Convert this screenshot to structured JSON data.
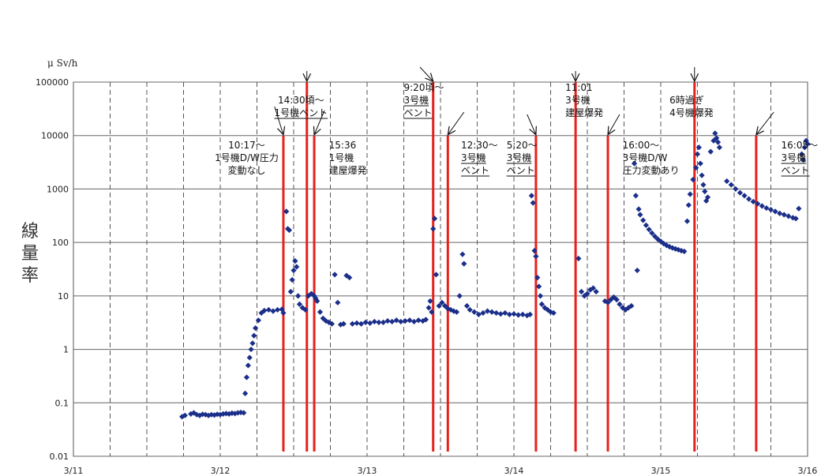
{
  "chart_data": {
    "type": "scatter",
    "unit_label": "μ Sv/h",
    "ylabel": "線量率",
    "y_scale": "log",
    "ylim": [
      0.01,
      100000
    ],
    "xlim": [
      0,
      5
    ],
    "y_ticks": [
      {
        "v": 0.01,
        "label": "0.01"
      },
      {
        "v": 0.1,
        "label": "0.1"
      },
      {
        "v": 1,
        "label": "1"
      },
      {
        "v": 10,
        "label": "10"
      },
      {
        "v": 100,
        "label": "100"
      },
      {
        "v": 1000,
        "label": "1000"
      },
      {
        "v": 10000,
        "label": "10000"
      },
      {
        "v": 100000,
        "label": "100000"
      }
    ],
    "x_ticks": [
      {
        "v": 0,
        "label": "3/11"
      },
      {
        "v": 1,
        "label": "3/12"
      },
      {
        "v": 2,
        "label": "3/13"
      },
      {
        "v": 3,
        "label": "3/14"
      },
      {
        "v": 4,
        "label": "3/15"
      },
      {
        "v": 5,
        "label": "3/16"
      }
    ],
    "grid": {
      "vertical_dashed_every_days": 0.25
    },
    "marker_color": "#1b2f8a",
    "event_line_color": "#e8201c",
    "series": [
      {
        "points": [
          [
            0.74,
            0.055
          ],
          [
            0.76,
            0.058
          ],
          [
            0.8,
            0.062
          ],
          [
            0.82,
            0.065
          ],
          [
            0.84,
            0.06
          ],
          [
            0.86,
            0.058
          ],
          [
            0.88,
            0.061
          ],
          [
            0.9,
            0.06
          ],
          [
            0.92,
            0.058
          ],
          [
            0.94,
            0.06
          ],
          [
            0.96,
            0.059
          ],
          [
            0.98,
            0.061
          ],
          [
            1.0,
            0.06
          ],
          [
            1.02,
            0.062
          ],
          [
            1.04,
            0.063
          ],
          [
            1.06,
            0.062
          ],
          [
            1.08,
            0.064
          ],
          [
            1.1,
            0.063
          ],
          [
            1.12,
            0.065
          ],
          [
            1.14,
            0.066
          ],
          [
            1.16,
            0.065
          ],
          [
            1.17,
            0.15
          ],
          [
            1.18,
            0.3
          ],
          [
            1.19,
            0.5
          ],
          [
            1.2,
            0.7
          ],
          [
            1.21,
            1.0
          ],
          [
            1.22,
            1.3
          ],
          [
            1.23,
            1.8
          ],
          [
            1.24,
            2.5
          ],
          [
            1.26,
            3.5
          ],
          [
            1.28,
            4.8
          ],
          [
            1.3,
            5.3
          ],
          [
            1.33,
            5.5
          ],
          [
            1.36,
            5.2
          ],
          [
            1.39,
            5.5
          ],
          [
            1.42,
            5.6
          ],
          [
            1.43,
            4.8
          ],
          [
            1.45,
            380
          ],
          [
            1.46,
            180
          ],
          [
            1.47,
            170
          ],
          [
            1.48,
            12
          ],
          [
            1.49,
            20
          ],
          [
            1.5,
            30
          ],
          [
            1.51,
            45
          ],
          [
            1.52,
            35
          ],
          [
            1.53,
            10
          ],
          [
            1.54,
            7
          ],
          [
            1.56,
            6
          ],
          [
            1.58,
            5.5
          ],
          [
            1.6,
            10
          ],
          [
            1.62,
            11
          ],
          [
            1.64,
            10
          ],
          [
            1.65,
            9
          ],
          [
            1.66,
            8
          ],
          [
            1.68,
            5
          ],
          [
            1.7,
            3.8
          ],
          [
            1.72,
            3.4
          ],
          [
            1.74,
            3.2
          ],
          [
            1.76,
            3.0
          ],
          [
            1.78,
            25
          ],
          [
            1.8,
            7.5
          ],
          [
            1.82,
            2.9
          ],
          [
            1.84,
            3.0
          ],
          [
            1.86,
            24
          ],
          [
            1.88,
            22
          ],
          [
            1.9,
            3.0
          ],
          [
            1.93,
            3.1
          ],
          [
            1.96,
            3.0
          ],
          [
            1.99,
            3.2
          ],
          [
            2.02,
            3.1
          ],
          [
            2.05,
            3.3
          ],
          [
            2.08,
            3.2
          ],
          [
            2.11,
            3.2
          ],
          [
            2.14,
            3.4
          ],
          [
            2.17,
            3.3
          ],
          [
            2.2,
            3.5
          ],
          [
            2.23,
            3.3
          ],
          [
            2.26,
            3.4
          ],
          [
            2.29,
            3.5
          ],
          [
            2.32,
            3.3
          ],
          [
            2.35,
            3.5
          ],
          [
            2.38,
            3.4
          ],
          [
            2.4,
            3.6
          ],
          [
            2.42,
            6
          ],
          [
            2.43,
            8
          ],
          [
            2.44,
            5
          ],
          [
            2.45,
            180
          ],
          [
            2.46,
            280
          ],
          [
            2.47,
            25
          ],
          [
            2.49,
            6.5
          ],
          [
            2.51,
            7.5
          ],
          [
            2.53,
            6.5
          ],
          [
            2.55,
            5.8
          ],
          [
            2.57,
            5.5
          ],
          [
            2.59,
            5.2
          ],
          [
            2.61,
            5.0
          ],
          [
            2.63,
            10
          ],
          [
            2.65,
            60
          ],
          [
            2.66,
            40
          ],
          [
            2.68,
            6.5
          ],
          [
            2.7,
            5.5
          ],
          [
            2.73,
            5.0
          ],
          [
            2.76,
            4.5
          ],
          [
            2.79,
            4.8
          ],
          [
            2.82,
            5.2
          ],
          [
            2.85,
            5.0
          ],
          [
            2.88,
            4.8
          ],
          [
            2.91,
            4.6
          ],
          [
            2.94,
            4.8
          ],
          [
            2.97,
            4.5
          ],
          [
            3.0,
            4.6
          ],
          [
            3.03,
            4.4
          ],
          [
            3.06,
            4.5
          ],
          [
            3.09,
            4.3
          ],
          [
            3.11,
            4.5
          ],
          [
            3.12,
            750
          ],
          [
            3.13,
            550
          ],
          [
            3.14,
            70
          ],
          [
            3.15,
            55
          ],
          [
            3.16,
            22
          ],
          [
            3.17,
            15
          ],
          [
            3.18,
            10
          ],
          [
            3.19,
            7
          ],
          [
            3.21,
            6
          ],
          [
            3.23,
            5.5
          ],
          [
            3.25,
            5.0
          ],
          [
            3.27,
            4.8
          ],
          [
            3.44,
            50
          ],
          [
            3.46,
            12
          ],
          [
            3.48,
            10
          ],
          [
            3.5,
            11
          ],
          [
            3.52,
            13
          ],
          [
            3.54,
            14
          ],
          [
            3.56,
            12
          ],
          [
            3.62,
            8
          ],
          [
            3.64,
            7.5
          ],
          [
            3.66,
            8.5
          ],
          [
            3.68,
            9.5
          ],
          [
            3.7,
            8.5
          ],
          [
            3.72,
            7
          ],
          [
            3.74,
            6
          ],
          [
            3.76,
            5.5
          ],
          [
            3.78,
            6
          ],
          [
            3.8,
            6.5
          ],
          [
            3.82,
            3000
          ],
          [
            3.83,
            750
          ],
          [
            3.84,
            30
          ],
          [
            3.85,
            420
          ],
          [
            3.86,
            330
          ],
          [
            3.88,
            260
          ],
          [
            3.9,
            210
          ],
          [
            3.92,
            175
          ],
          [
            3.94,
            150
          ],
          [
            3.96,
            130
          ],
          [
            3.98,
            115
          ],
          [
            4.0,
            105
          ],
          [
            4.02,
            95
          ],
          [
            4.04,
            88
          ],
          [
            4.06,
            83
          ],
          [
            4.08,
            79
          ],
          [
            4.1,
            76
          ],
          [
            4.12,
            73
          ],
          [
            4.14,
            70
          ],
          [
            4.16,
            68
          ],
          [
            4.18,
            250
          ],
          [
            4.19,
            500
          ],
          [
            4.2,
            800
          ],
          [
            4.22,
            1500
          ],
          [
            4.24,
            2500
          ],
          [
            4.25,
            4500
          ],
          [
            4.26,
            6000
          ],
          [
            4.27,
            3000
          ],
          [
            4.28,
            1800
          ],
          [
            4.29,
            1200
          ],
          [
            4.3,
            900
          ],
          [
            4.31,
            600
          ],
          [
            4.32,
            700
          ],
          [
            4.34,
            5000
          ],
          [
            4.36,
            8000
          ],
          [
            4.37,
            11000
          ],
          [
            4.38,
            9000
          ],
          [
            4.39,
            7500
          ],
          [
            4.4,
            6000
          ],
          [
            4.45,
            1400
          ],
          [
            4.48,
            1200
          ],
          [
            4.51,
            1000
          ],
          [
            4.54,
            850
          ],
          [
            4.57,
            750
          ],
          [
            4.6,
            650
          ],
          [
            4.63,
            580
          ],
          [
            4.66,
            530
          ],
          [
            4.69,
            480
          ],
          [
            4.72,
            440
          ],
          [
            4.75,
            410
          ],
          [
            4.78,
            380
          ],
          [
            4.81,
            350
          ],
          [
            4.84,
            330
          ],
          [
            4.87,
            310
          ],
          [
            4.9,
            290
          ],
          [
            4.92,
            280
          ],
          [
            4.94,
            430
          ],
          [
            4.96,
            4500
          ],
          [
            4.97,
            3500
          ],
          [
            4.98,
            6000
          ],
          [
            4.99,
            8000
          ],
          [
            5.0,
            7000
          ]
        ]
      }
    ],
    "events": [
      {
        "x": 1.43,
        "top": 10000,
        "ann": {
          "lines": [
            "10:17～",
            "1号機D/W圧力",
            "変動なし"
          ],
          "ul": [],
          "left": true,
          "tx": 1.18,
          "ty": 220,
          "ax0": 1.37,
          "ay0": 135
        }
      },
      {
        "x": 1.59,
        "top": 100000,
        "ann": {
          "lines": [
            "14:30頃～",
            "1号機ベント"
          ],
          "ul": [
            1
          ],
          "left": true,
          "tx": 1.55,
          "ty": 147,
          "ax0": 1.59,
          "ay0": 90
        }
      },
      {
        "x": 1.64,
        "top": 10000,
        "ann": {
          "lines": [
            "15:36",
            "1号機",
            "建屋爆発"
          ],
          "ul": [],
          "left": false,
          "tx": 1.74,
          "ty": 220,
          "ax0": 1.71,
          "ay0": 140
        }
      },
      {
        "x": 2.45,
        "top": 100000,
        "ann": {
          "lines": [
            "9:20頃～",
            "3号機",
            "ベント"
          ],
          "ul": [
            1,
            2
          ],
          "left": false,
          "tx": 2.25,
          "ty": 147,
          "ax0": 2.36,
          "ay0": 85
        }
      },
      {
        "x": 2.55,
        "top": 10000,
        "ann": {
          "lines": [
            "12:30～",
            "3号機",
            "ベント"
          ],
          "ul": [
            1,
            2
          ],
          "left": false,
          "tx": 2.64,
          "ty": 220,
          "ax0": 2.66,
          "ay0": 142
        }
      },
      {
        "x": 3.15,
        "top": 10000,
        "ann": {
          "lines": [
            "5:20～",
            "3号機",
            "ベント"
          ],
          "ul": [
            1,
            2
          ],
          "left": false,
          "tx": 2.95,
          "ty": 220,
          "ax0": 3.09,
          "ay0": 145
        }
      },
      {
        "x": 3.42,
        "top": 100000,
        "ann": {
          "lines": [
            "11:01",
            "3号機",
            "建屋爆発"
          ],
          "ul": [],
          "left": false,
          "tx": 3.35,
          "ty": 147,
          "ax0": 3.42,
          "ay0": 90
        }
      },
      {
        "x": 3.64,
        "top": 10000,
        "ann": {
          "lines": [
            "16:00～",
            "3号機D/W",
            "圧力変動あり"
          ],
          "ul": [],
          "left": false,
          "tx": 3.74,
          "ty": 220,
          "ax0": 3.72,
          "ay0": 145
        }
      },
      {
        "x": 4.23,
        "top": 100000,
        "ann": {
          "lines": [
            "6時過ぎ",
            "4号機爆発"
          ],
          "ul": [],
          "left": false,
          "tx": 4.06,
          "ty": 147,
          "ax0": 4.23,
          "ay0": 85
        }
      },
      {
        "x": 4.65,
        "top": 10000,
        "ann": {
          "lines": [
            "16:05～",
            "3号機",
            "ベント"
          ],
          "ul": [
            1,
            2
          ],
          "left": false,
          "tx": 4.82,
          "ty": 220,
          "ax0": 4.77,
          "ay0": 142
        }
      }
    ]
  }
}
